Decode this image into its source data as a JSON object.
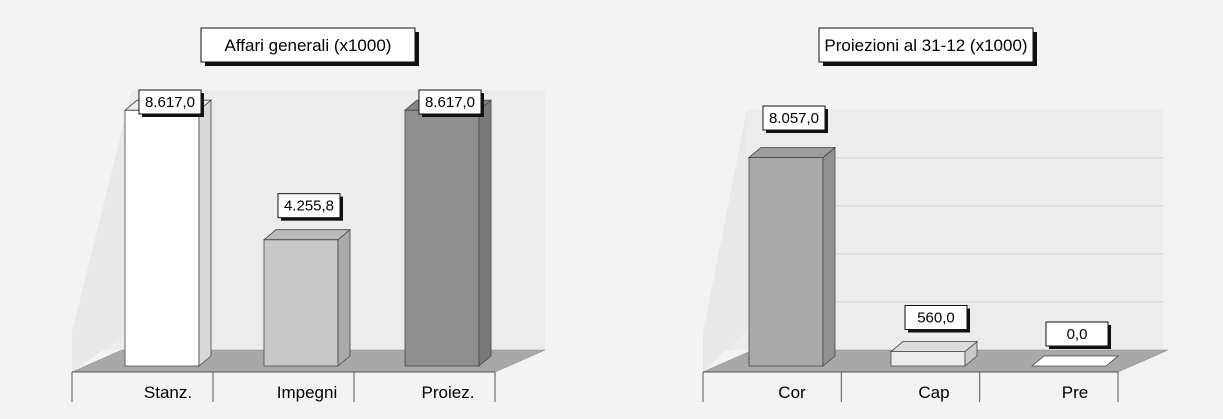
{
  "chart_data": [
    {
      "type": "bar",
      "title": "Affari generali (x1000)",
      "categories": [
        "Stanz.",
        "Impegni",
        "Proiez."
      ],
      "values": [
        8617.0,
        4255.8,
        8617.0
      ],
      "value_labels": [
        "8.617,0",
        "4.255,8",
        "8.617,0"
      ],
      "bar_colors": [
        "#ffffff",
        "#c8c8c8",
        "#8f8f8f"
      ],
      "ylim": [
        0,
        9500
      ],
      "grid": false,
      "style": "3d"
    },
    {
      "type": "bar",
      "title": "Proiezioni al 31-12 (x1000)",
      "categories": [
        "Cor",
        "Cap",
        "Pre"
      ],
      "values": [
        8057.0,
        560.0,
        0.0
      ],
      "value_labels": [
        "8.057,0",
        "560,0",
        "0,0"
      ],
      "bar_colors": [
        "#a9a9a9",
        "#ededed",
        "#ffffff"
      ],
      "ylim": [
        0,
        10200
      ],
      "grid": true,
      "style": "3d"
    }
  ]
}
